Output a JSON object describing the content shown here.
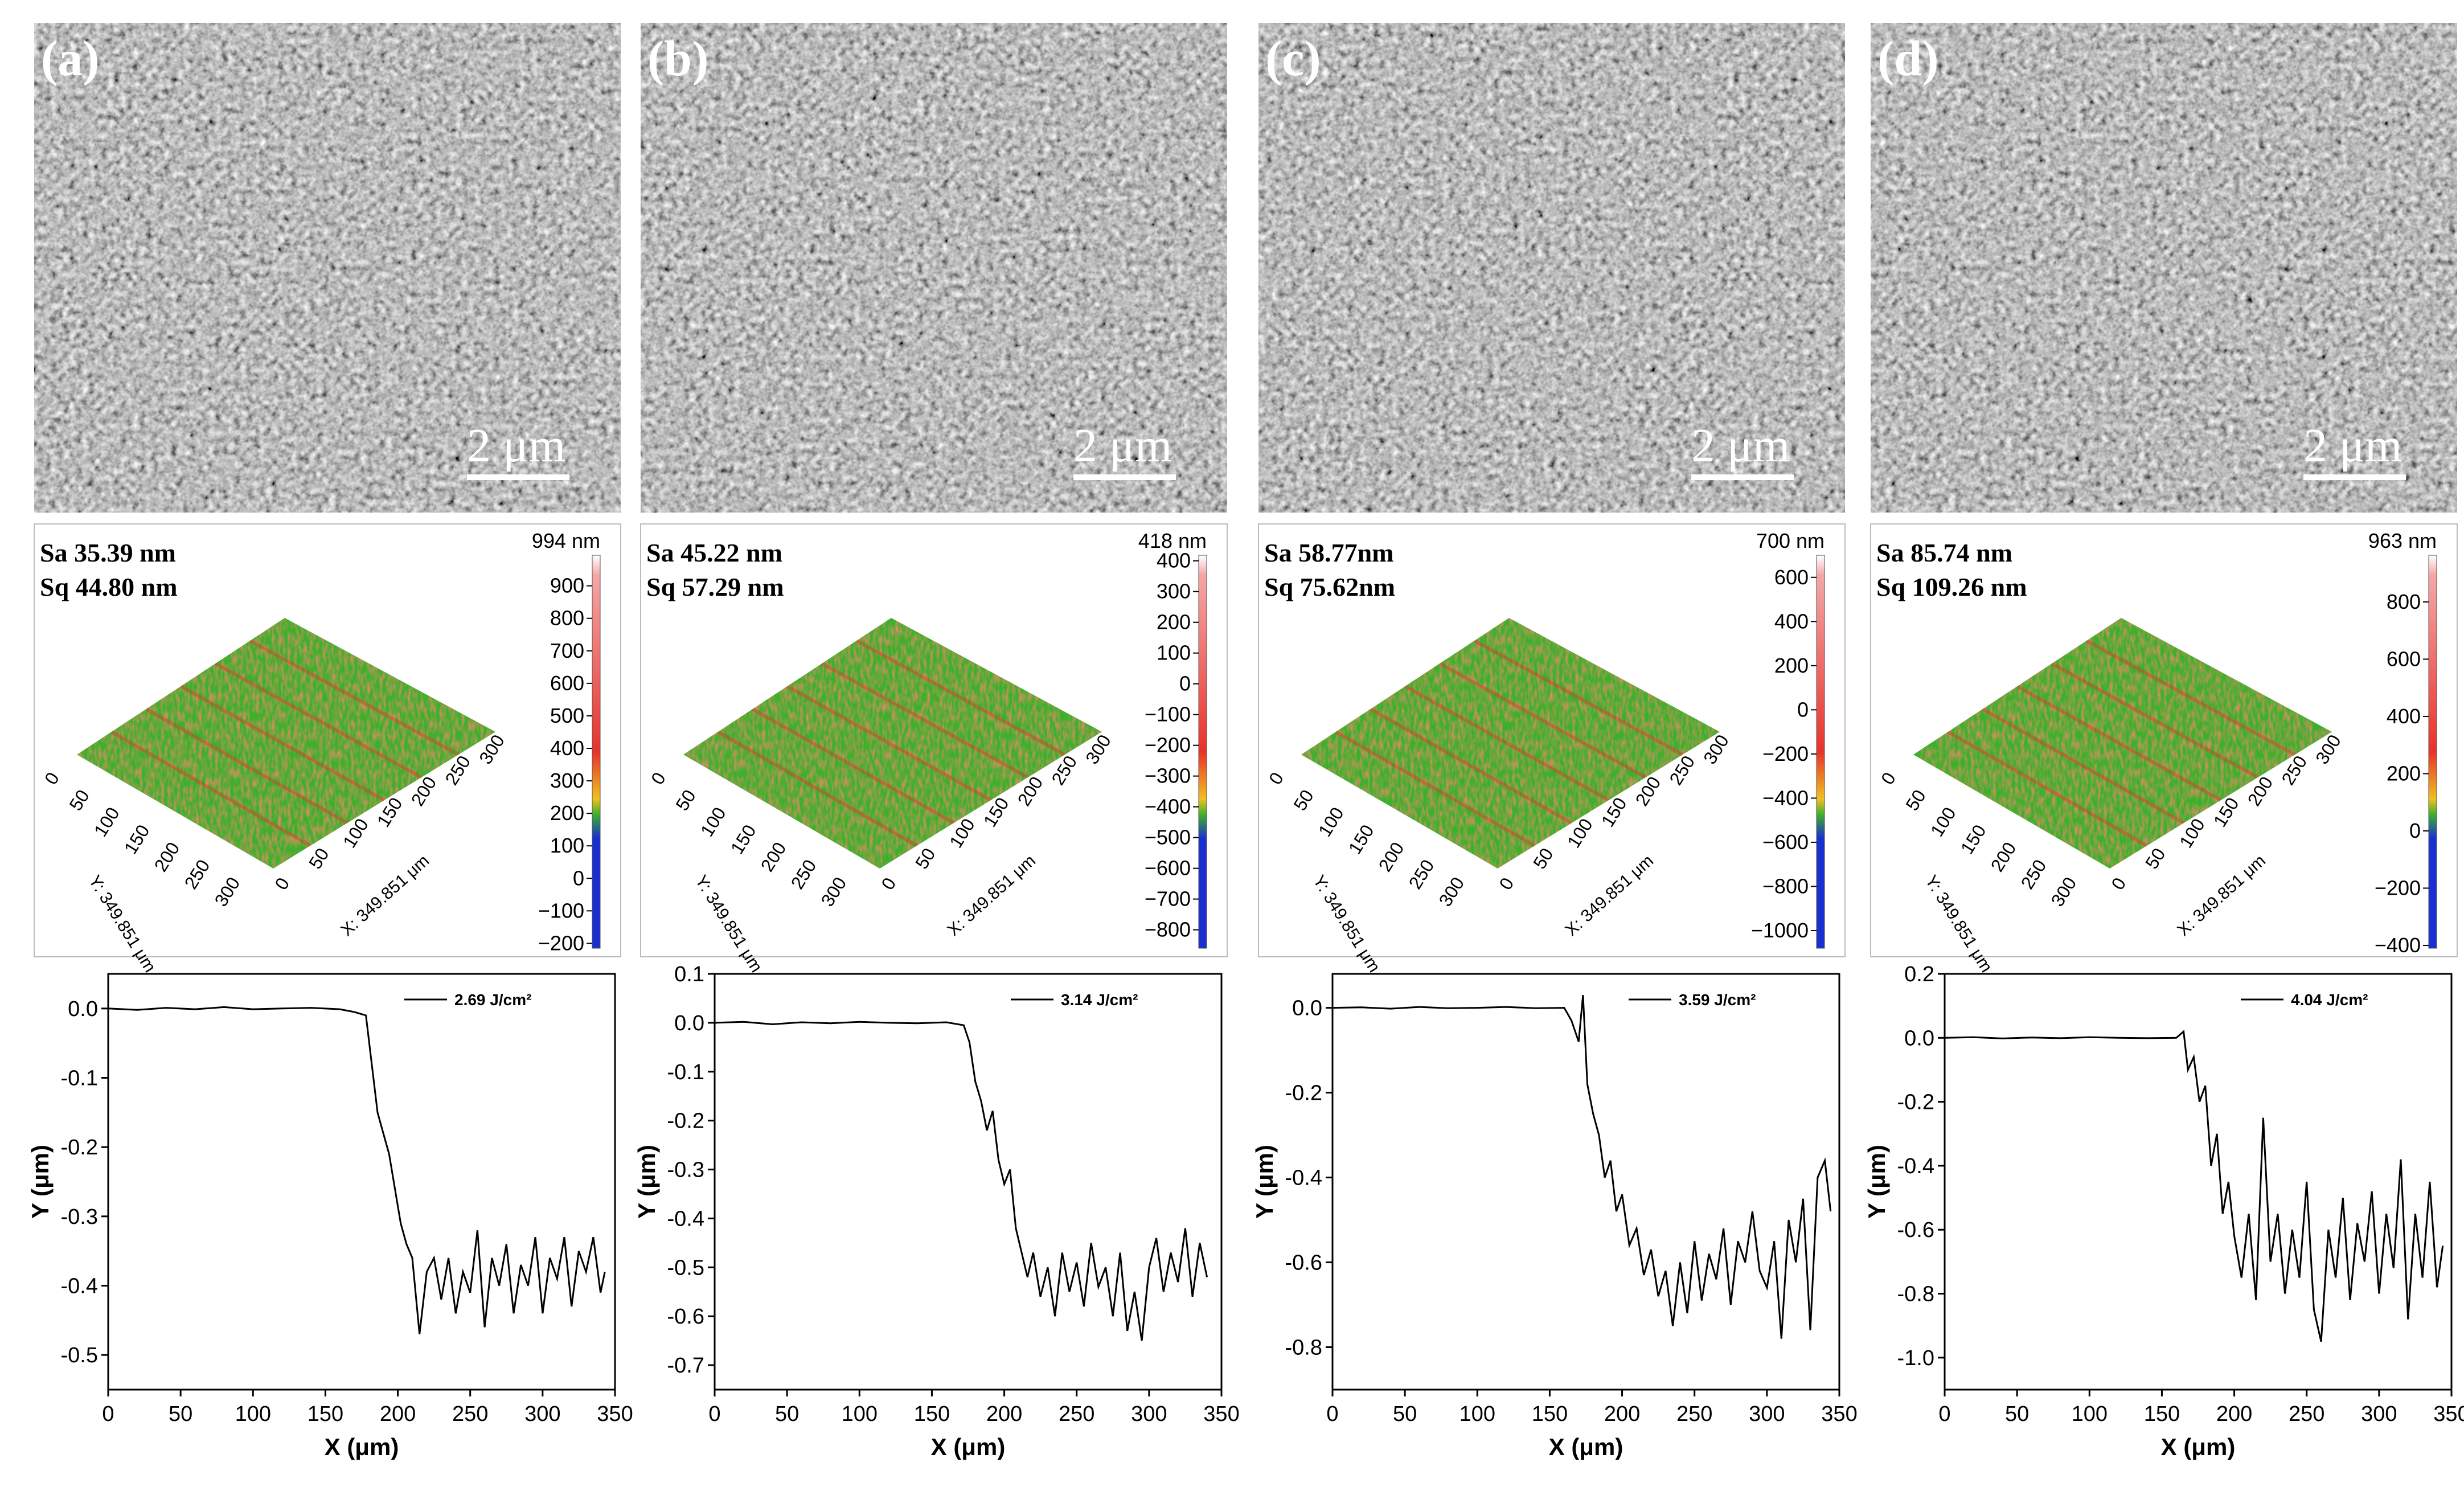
{
  "panels": [
    {
      "label": "(a)",
      "scale_bar": "2 μm",
      "Sa": "Sa 35.39 nm",
      "Sq": "Sq 44.80 nm",
      "cb_max": "994 nm",
      "cb_ticks": [
        "900",
        "800",
        "700",
        "600",
        "500",
        "400",
        "300",
        "200",
        "100",
        "0",
        "−100",
        "−200"
      ],
      "cb_range": [
        -215,
        994
      ]
    },
    {
      "label": "(b)",
      "scale_bar": "2 μm",
      "Sa": "Sa 45.22 nm",
      "Sq": "Sq 57.29 nm",
      "cb_max": "418 nm",
      "cb_ticks": [
        "400",
        "300",
        "200",
        "100",
        "0",
        "−100",
        "−200",
        "−300",
        "−400",
        "−500",
        "−600",
        "−700",
        "−800"
      ],
      "cb_range": [
        -860,
        418
      ]
    },
    {
      "label": "(c)",
      "scale_bar": "2 μm",
      "Sa": "Sa 58.77nm",
      "Sq": "Sq 75.62nm",
      "cb_max": "700 nm",
      "cb_ticks": [
        "600",
        "400",
        "200",
        "0",
        "−200",
        "−400",
        "−600",
        "−800",
        "−1000"
      ],
      "cb_range": [
        -1080,
        700
      ]
    },
    {
      "label": "(d)",
      "scale_bar": "2 μm",
      "Sa": "Sa 85.74 nm",
      "Sq": "Sq 109.26 nm",
      "cb_max": "963 nm",
      "cb_ticks": [
        "800",
        "600",
        "400",
        "200",
        "0",
        "−200",
        "−400"
      ],
      "cb_range": [
        -410,
        963
      ]
    }
  ],
  "surface_axes": {
    "y_ticks": [
      "0",
      "50",
      "100",
      "150",
      "200",
      "250",
      "300"
    ],
    "x_ticks": [
      "0",
      "50",
      "100",
      "150",
      "200",
      "250",
      "300"
    ],
    "y_label": "Y: 349.851 μm",
    "x_label": "X: 349.851 μm"
  },
  "colors": {
    "accent_red": "#e8322a",
    "green": "#3cb02c",
    "blue": "#1a2fd0"
  },
  "chart_data": [
    {
      "type": "line",
      "title": "",
      "xlabel": "X (μm)",
      "ylabel": "Y (μm)",
      "xlim": [
        0,
        350
      ],
      "ylim": [
        -0.55,
        0.05
      ],
      "xticks": [
        "0",
        "50",
        "100",
        "150",
        "200",
        "250",
        "300",
        "350"
      ],
      "yticks": [
        "0.0",
        "-0.1",
        "-0.2",
        "-0.3",
        "-0.4",
        "-0.5"
      ],
      "series": [
        {
          "name": "2.69 J/cm²",
          "x": [
            0,
            20,
            40,
            60,
            80,
            100,
            120,
            140,
            160,
            170,
            178,
            182,
            186,
            190,
            194,
            198,
            202,
            206,
            210,
            215,
            220,
            225,
            230,
            235,
            240,
            245,
            250,
            255,
            260,
            265,
            270,
            275,
            280,
            285,
            290,
            295,
            300,
            305,
            310,
            315,
            320,
            325,
            330,
            335,
            340,
            343
          ],
          "y": [
            0,
            -0.002,
            0.001,
            -0.001,
            0.002,
            -0.001,
            0,
            0.001,
            -0.001,
            -0.005,
            -0.01,
            -0.08,
            -0.15,
            -0.18,
            -0.21,
            -0.26,
            -0.31,
            -0.34,
            -0.36,
            -0.47,
            -0.38,
            -0.36,
            -0.42,
            -0.36,
            -0.44,
            -0.38,
            -0.41,
            -0.32,
            -0.46,
            -0.36,
            -0.4,
            -0.34,
            -0.44,
            -0.37,
            -0.4,
            -0.33,
            -0.44,
            -0.36,
            -0.39,
            -0.33,
            -0.43,
            -0.35,
            -0.38,
            -0.33,
            -0.41,
            -0.38
          ]
        }
      ]
    },
    {
      "type": "line",
      "title": "",
      "xlabel": "X (μm)",
      "ylabel": "Y (μm)",
      "xlim": [
        0,
        350
      ],
      "ylim": [
        -0.75,
        0.1
      ],
      "xticks": [
        "0",
        "50",
        "100",
        "150",
        "200",
        "250",
        "300",
        "350"
      ],
      "yticks": [
        "0.1",
        "0.0",
        "-0.1",
        "-0.2",
        "-0.3",
        "-0.4",
        "-0.5",
        "-0.6",
        "-0.7"
      ],
      "series": [
        {
          "name": "3.14 J/cm²",
          "x": [
            0,
            20,
            40,
            60,
            80,
            100,
            120,
            140,
            160,
            172,
            176,
            180,
            184,
            188,
            192,
            196,
            200,
            204,
            208,
            212,
            216,
            220,
            225,
            230,
            235,
            240,
            245,
            250,
            255,
            260,
            265,
            270,
            275,
            280,
            285,
            290,
            295,
            300,
            305,
            310,
            315,
            320,
            325,
            330,
            335,
            340
          ],
          "y": [
            0,
            0.002,
            -0.003,
            0.001,
            -0.001,
            0.002,
            0,
            -0.001,
            0.001,
            -0.005,
            -0.04,
            -0.12,
            -0.16,
            -0.22,
            -0.18,
            -0.28,
            -0.33,
            -0.3,
            -0.42,
            -0.47,
            -0.52,
            -0.47,
            -0.56,
            -0.5,
            -0.6,
            -0.47,
            -0.55,
            -0.49,
            -0.58,
            -0.45,
            -0.54,
            -0.5,
            -0.6,
            -0.47,
            -0.63,
            -0.55,
            -0.65,
            -0.5,
            -0.44,
            -0.55,
            -0.47,
            -0.53,
            -0.42,
            -0.56,
            -0.45,
            -0.52
          ]
        }
      ]
    },
    {
      "type": "line",
      "title": "",
      "xlabel": "X (μm)",
      "ylabel": "Y (μm)",
      "xlim": [
        0,
        350
      ],
      "ylim": [
        -0.9,
        0.08
      ],
      "xticks": [
        "0",
        "50",
        "100",
        "150",
        "200",
        "250",
        "300",
        "350"
      ],
      "yticks": [
        "0.0",
        "-0.2",
        "-0.4",
        "-0.6",
        "-0.8"
      ],
      "series": [
        {
          "name": "3.59 J/cm²",
          "x": [
            0,
            20,
            40,
            60,
            80,
            100,
            120,
            140,
            160,
            165,
            170,
            173,
            176,
            180,
            184,
            188,
            192,
            196,
            200,
            205,
            210,
            215,
            220,
            225,
            230,
            235,
            240,
            245,
            250,
            255,
            260,
            265,
            270,
            275,
            280,
            285,
            290,
            295,
            300,
            305,
            310,
            315,
            320,
            325,
            330,
            335,
            340,
            344
          ],
          "y": [
            0,
            0.001,
            -0.002,
            0.002,
            -0.001,
            0,
            0.002,
            -0.001,
            0,
            -0.03,
            -0.08,
            0.03,
            -0.18,
            -0.25,
            -0.3,
            -0.4,
            -0.36,
            -0.48,
            -0.44,
            -0.56,
            -0.52,
            -0.63,
            -0.57,
            -0.68,
            -0.62,
            -0.75,
            -0.6,
            -0.72,
            -0.55,
            -0.69,
            -0.58,
            -0.64,
            -0.52,
            -0.7,
            -0.55,
            -0.6,
            -0.48,
            -0.62,
            -0.66,
            -0.55,
            -0.78,
            -0.5,
            -0.6,
            -0.45,
            -0.76,
            -0.4,
            -0.36,
            -0.48
          ]
        }
      ]
    },
    {
      "type": "line",
      "title": "",
      "xlabel": "X (μm)",
      "ylabel": "Y (μm)",
      "xlim": [
        0,
        350
      ],
      "ylim": [
        -1.1,
        0.2
      ],
      "xticks": [
        "0",
        "50",
        "100",
        "150",
        "200",
        "250",
        "300",
        "350"
      ],
      "yticks": [
        "0.2",
        "0.0",
        "-0.2",
        "-0.4",
        "-0.6",
        "-0.8",
        "-1.0"
      ],
      "series": [
        {
          "name": "4.04 J/cm²",
          "x": [
            0,
            20,
            40,
            60,
            80,
            100,
            120,
            140,
            160,
            165,
            168,
            172,
            176,
            180,
            184,
            188,
            192,
            196,
            200,
            205,
            210,
            215,
            220,
            225,
            230,
            235,
            240,
            245,
            250,
            255,
            260,
            265,
            270,
            275,
            280,
            285,
            290,
            295,
            300,
            305,
            310,
            315,
            320,
            325,
            330,
            335,
            340,
            344
          ],
          "y": [
            0,
            0.002,
            -0.002,
            0.001,
            -0.001,
            0.002,
            0,
            -0.001,
            0,
            0.02,
            -0.1,
            -0.06,
            -0.2,
            -0.15,
            -0.4,
            -0.3,
            -0.55,
            -0.45,
            -0.62,
            -0.75,
            -0.55,
            -0.82,
            -0.25,
            -0.7,
            -0.55,
            -0.8,
            -0.6,
            -0.75,
            -0.45,
            -0.85,
            -0.95,
            -0.6,
            -0.75,
            -0.5,
            -0.82,
            -0.58,
            -0.7,
            -0.48,
            -0.8,
            -0.55,
            -0.72,
            -0.38,
            -0.88,
            -0.55,
            -0.75,
            -0.45,
            -0.78,
            -0.65
          ]
        }
      ]
    }
  ]
}
